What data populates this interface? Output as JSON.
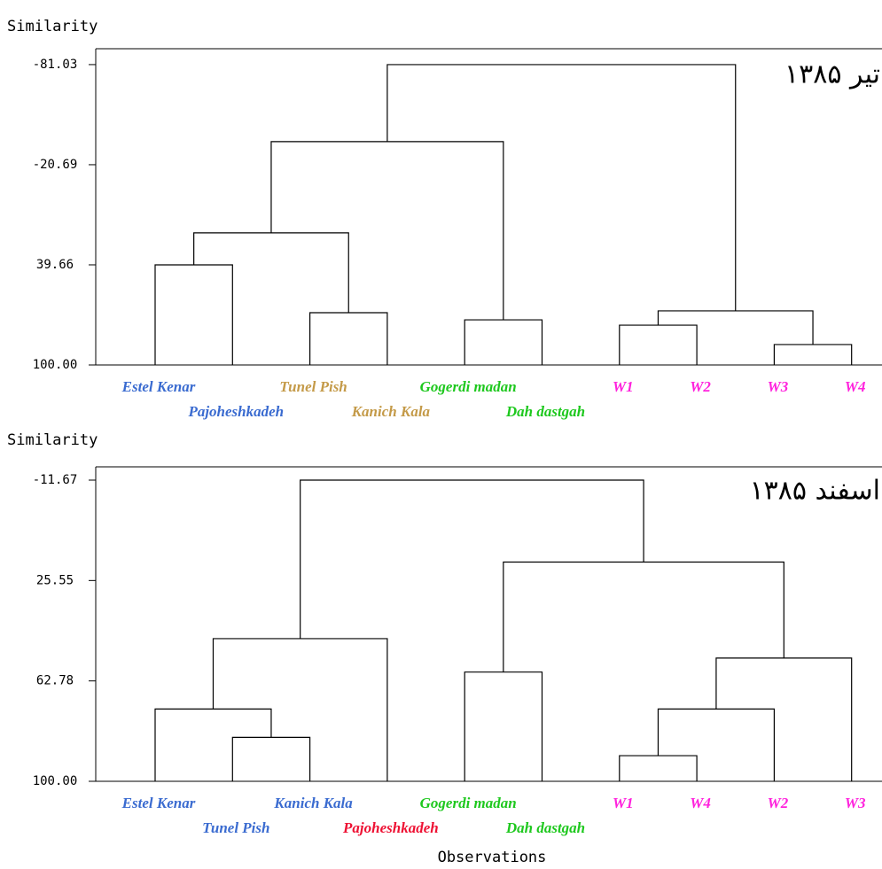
{
  "chart_data": [
    {
      "type": "dendrogram",
      "y_label": "Similarity",
      "annotation": "تیر ۱۳۸۵",
      "leaves": [
        "Estel Kenar",
        "Pajoheshkadeh",
        "Tunel Pish",
        "Kanich Kala",
        "Gogerdi madan",
        "Dah dastgah",
        "W1",
        "W2",
        "W3",
        "W4"
      ],
      "leaf_colors": [
        "#3a6bd0",
        "#3a6bd0",
        "#c49a48",
        "#c49a48",
        "#1ec81e",
        "#1ec81e",
        "#ff22dd",
        "#ff22dd",
        "#ff22dd",
        "#ff22dd"
      ],
      "merges": [
        {
          "children": [
            0,
            1
          ],
          "height": 39.66
        },
        {
          "children": [
            2,
            3
          ],
          "height": 68.5
        },
        {
          "children": [
            4,
            5
          ],
          "height": 72.8
        },
        {
          "children": [
            6,
            7
          ],
          "height": 76.0
        },
        {
          "children": [
            8,
            9
          ],
          "height": 87.7
        },
        {
          "children": [
            13,
            14
          ],
          "height": 67.4
        },
        {
          "children": [
            10,
            11
          ],
          "height": 20.4
        },
        {
          "children": [
            16,
            12
          ],
          "height": -34.6
        },
        {
          "children": [
            17,
            15
          ],
          "height": -81.03
        }
      ],
      "ylim": [
        100,
        -90.6
      ],
      "yticks": [
        -81.03,
        -20.69,
        39.66,
        {
          "value": 100,
          "label": "100.00"
        }
      ]
    },
    {
      "type": "dendrogram",
      "y_label": "Similarity",
      "x_label": "Observations",
      "annotation": "اسفند ۱۳۸۵",
      "leaves": [
        "Estel Kenar",
        "Tunel Pish",
        "Kanich Kala",
        "Pajoheshkadeh",
        "Gogerdi madan",
        "Dah dastgah",
        "W1",
        "W4",
        "W2",
        "W3"
      ],
      "leaf_colors": [
        "#3a6bd0",
        "#3a6bd0",
        "#3a6bd0",
        "#ee1133",
        "#1ec81e",
        "#1ec81e",
        "#ff22dd",
        "#ff22dd",
        "#ff22dd",
        "#ff22dd"
      ],
      "merges": [
        {
          "children": [
            1,
            2
          ],
          "height": 83.7
        },
        {
          "children": [
            0,
            10
          ],
          "height": 73.2
        },
        {
          "children": [
            11,
            3
          ],
          "height": 47.1
        },
        {
          "children": [
            4,
            5
          ],
          "height": 59.5
        },
        {
          "children": [
            6,
            7
          ],
          "height": 90.5
        },
        {
          "children": [
            14,
            8
          ],
          "height": 73.2
        },
        {
          "children": [
            15,
            9
          ],
          "height": 54.3
        },
        {
          "children": [
            13,
            16
          ],
          "height": 18.7
        },
        {
          "children": [
            12,
            17
          ],
          "height": -11.67
        }
      ],
      "ylim": [
        100,
        -16.6
      ],
      "yticks": [
        -11.67,
        25.55,
        62.78,
        {
          "value": 100,
          "label": "100.00"
        }
      ]
    }
  ]
}
